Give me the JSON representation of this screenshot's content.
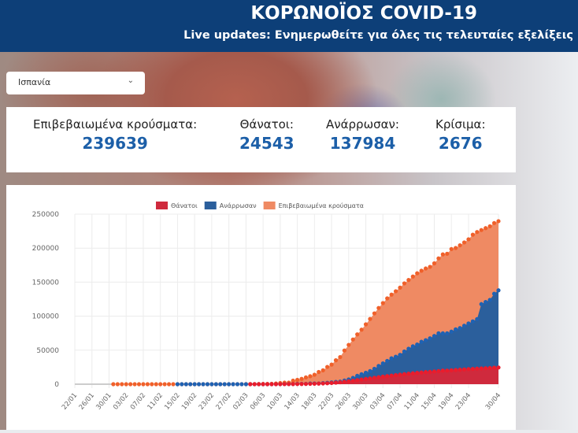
{
  "header": {
    "title": "ΚΟΡΩΝΟΪΟΣ COVID-19",
    "subtitle": "Live updates: Ενημερωθείτε για όλες τις τελευταίες εξελίξεις"
  },
  "country_select": {
    "value": "Ισπανία",
    "icon": "chevron-down-icon"
  },
  "stats": [
    {
      "label": "Επιβεβαιωμένα κρούσματα:",
      "value": "239639"
    },
    {
      "label": "Θάνατοι:",
      "value": "24543"
    },
    {
      "label": "Ανάρρωσαν:",
      "value": "137984"
    },
    {
      "label": "Κρίσιμα:",
      "value": "2676"
    }
  ],
  "chart_data": {
    "type": "area",
    "legend_position": "top",
    "grid": true,
    "ylim": [
      0,
      250000
    ],
    "yticks": [
      "0",
      "50000",
      "100000",
      "150000",
      "200000",
      "250000"
    ],
    "xtick_labels": [
      "22/01",
      "26/01",
      "30/01",
      "03/02",
      "07/02",
      "11/02",
      "15/02",
      "19/02",
      "23/02",
      "27/02",
      "02/03",
      "06/03",
      "10/03",
      "14/03",
      "18/03",
      "22/03",
      "26/03",
      "30/03",
      "03/04",
      "07/04",
      "11/04",
      "15/04",
      "19/04",
      "23/04",
      "30/04"
    ],
    "x_start": "22/01",
    "x_end": "30/04",
    "series": [
      {
        "name": "Επιβεβαιωμένα κρούσματα",
        "color": "#ef8a63",
        "dot": "#f0602a",
        "values": [
          null,
          null,
          null,
          null,
          null,
          null,
          null,
          null,
          null,
          1,
          1,
          1,
          1,
          1,
          1,
          1,
          1,
          1,
          1,
          2,
          2,
          2,
          2,
          2,
          2,
          2,
          2,
          2,
          2,
          2,
          2,
          2,
          2,
          2,
          6,
          13,
          15,
          32,
          45,
          84,
          120,
          165,
          222,
          259,
          400,
          500,
          673,
          1073,
          1695,
          2277,
          2277,
          5232,
          6391,
          7798,
          9942,
          11748,
          13910,
          17963,
          20410,
          25374,
          28768,
          35136,
          39885,
          49515,
          57786,
          65719,
          73235,
          80110,
          87956,
          95923,
          104118,
          112065,
          119199,
          126168,
          131646,
          136675,
          141942,
          148220,
          153222,
          158273,
          163027,
          166831,
          170099,
          172541,
          177644,
          184948,
          190839,
          191726,
          198674,
          200210,
          204178,
          208389,
          213024,
          219764,
          223759,
          226629,
          229422,
          232128,
          236899,
          239639
        ]
      },
      {
        "name": "Ανάρρωσαν",
        "color": "#2b5f9c",
        "dot": "#1f62b3",
        "values": [
          null,
          null,
          null,
          null,
          null,
          null,
          null,
          null,
          null,
          null,
          null,
          null,
          null,
          null,
          null,
          null,
          null,
          null,
          null,
          null,
          null,
          null,
          null,
          null,
          2,
          2,
          2,
          2,
          2,
          2,
          2,
          2,
          2,
          2,
          2,
          2,
          2,
          2,
          2,
          2,
          2,
          2,
          2,
          2,
          2,
          30,
          30,
          32,
          32,
          183,
          183,
          193,
          517,
          517,
          530,
          1028,
          1081,
          1107,
          1588,
          2125,
          2575,
          3355,
          3794,
          5367,
          7015,
          9357,
          12285,
          14709,
          16780,
          19259,
          22647,
          26743,
          30513,
          34219,
          38080,
          40437,
          43208,
          48021,
          52165,
          55668,
          58318,
          62391,
          64727,
          67504,
          70853,
          74797,
          74797,
          74797,
          77357,
          80587,
          82514,
          85915,
          89250,
          92355,
          95708,
          117727,
          120832,
          123903,
          132929,
          137984
        ]
      },
      {
        "name": "Θάνατοι",
        "color": "#cf2a3d",
        "dot": "#ea1c2c",
        "values": [
          null,
          null,
          null,
          null,
          null,
          null,
          null,
          null,
          null,
          null,
          null,
          null,
          null,
          null,
          null,
          null,
          null,
          null,
          null,
          null,
          null,
          null,
          null,
          null,
          null,
          null,
          null,
          null,
          null,
          null,
          null,
          null,
          null,
          null,
          null,
          null,
          null,
          null,
          null,
          null,
          null,
          1,
          2,
          3,
          5,
          10,
          17,
          28,
          35,
          54,
          55,
          133,
          195,
          289,
          342,
          533,
          623,
          830,
          1043,
          1375,
          1772,
          2311,
          2808,
          3647,
          4365,
          5138,
          5982,
          6803,
          7716,
          8464,
          9387,
          10348,
          11198,
          11947,
          12641,
          13341,
          14045,
          14792,
          15447,
          16081,
          16606,
          17209,
          17756,
          18056,
          18708,
          19315,
          20002,
          20043,
          20453,
          20852,
          21282,
          21717,
          22157,
          22524,
          22902,
          23190,
          23521,
          23822,
          24275,
          24543
        ]
      }
    ],
    "legend_order": [
      2,
      1,
      0
    ]
  }
}
